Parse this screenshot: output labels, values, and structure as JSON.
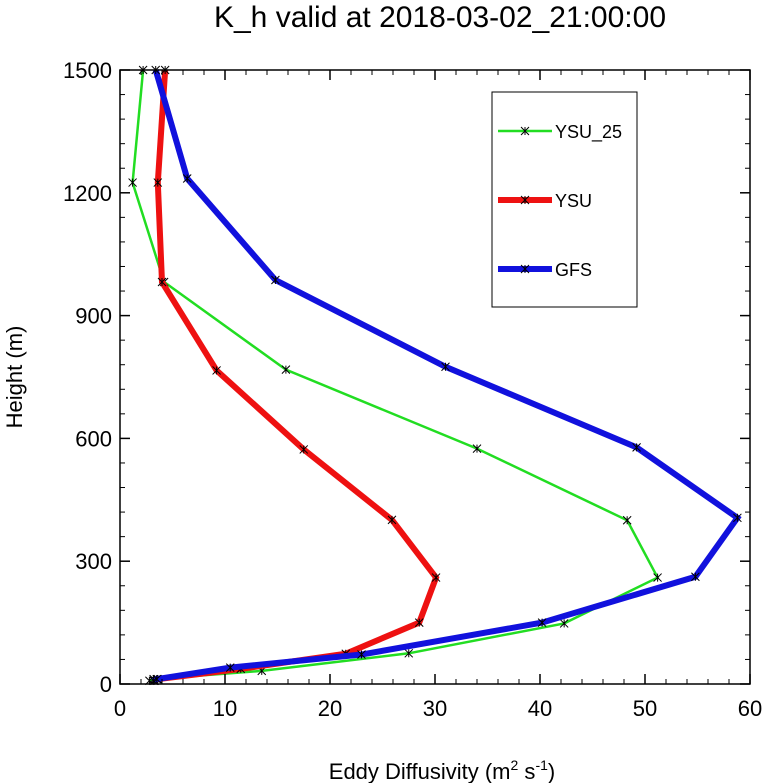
{
  "chart_data": {
    "type": "line",
    "title": "K_h valid at 2018-03-02_21:00:00",
    "xlabel": "Eddy Diffusivity (m",
    "xlabel_sup1": "2",
    "xlabel_mid": " s",
    "xlabel_sup2": "-1",
    "xlabel_end": ")",
    "ylabel": "Height (m)",
    "xlim": [
      0,
      60
    ],
    "ylim": [
      0,
      1500
    ],
    "x_ticks": [
      0,
      10,
      20,
      30,
      40,
      50,
      60
    ],
    "y_ticks": [
      0,
      300,
      600,
      900,
      1200,
      1500
    ],
    "legend_position": "top-right",
    "series": [
      {
        "name": "YSU_25",
        "color": "#22dd22",
        "points": [
          [
            2.8,
            8
          ],
          [
            3.2,
            12
          ],
          [
            13.5,
            32
          ],
          [
            27.5,
            75
          ],
          [
            42.3,
            148
          ],
          [
            51.2,
            260
          ],
          [
            48.3,
            400
          ],
          [
            34,
            575
          ],
          [
            15.8,
            768
          ],
          [
            4.2,
            982
          ],
          [
            1.2,
            1225
          ],
          [
            2.2,
            1500
          ]
        ]
      },
      {
        "name": "YSU",
        "color": "#ee1111",
        "points": [
          [
            3.3,
            8
          ],
          [
            3.6,
            12
          ],
          [
            11.5,
            37
          ],
          [
            21.5,
            74
          ],
          [
            28.5,
            150
          ],
          [
            30.1,
            260
          ],
          [
            25.9,
            401
          ],
          [
            17.5,
            573
          ],
          [
            9.2,
            766
          ],
          [
            4,
            982
          ],
          [
            3.6,
            1225
          ],
          [
            4.3,
            1500
          ]
        ]
      },
      {
        "name": "GFS",
        "color": "#1111dd",
        "points": [
          [
            3.2,
            8
          ],
          [
            3.5,
            12
          ],
          [
            10.5,
            40
          ],
          [
            23,
            72
          ],
          [
            40.2,
            150
          ],
          [
            54.8,
            262
          ],
          [
            58.8,
            406
          ],
          [
            49.2,
            578
          ],
          [
            31,
            775
          ],
          [
            14.8,
            987
          ],
          [
            6.4,
            1235
          ],
          [
            3.4,
            1500
          ]
        ]
      }
    ]
  }
}
